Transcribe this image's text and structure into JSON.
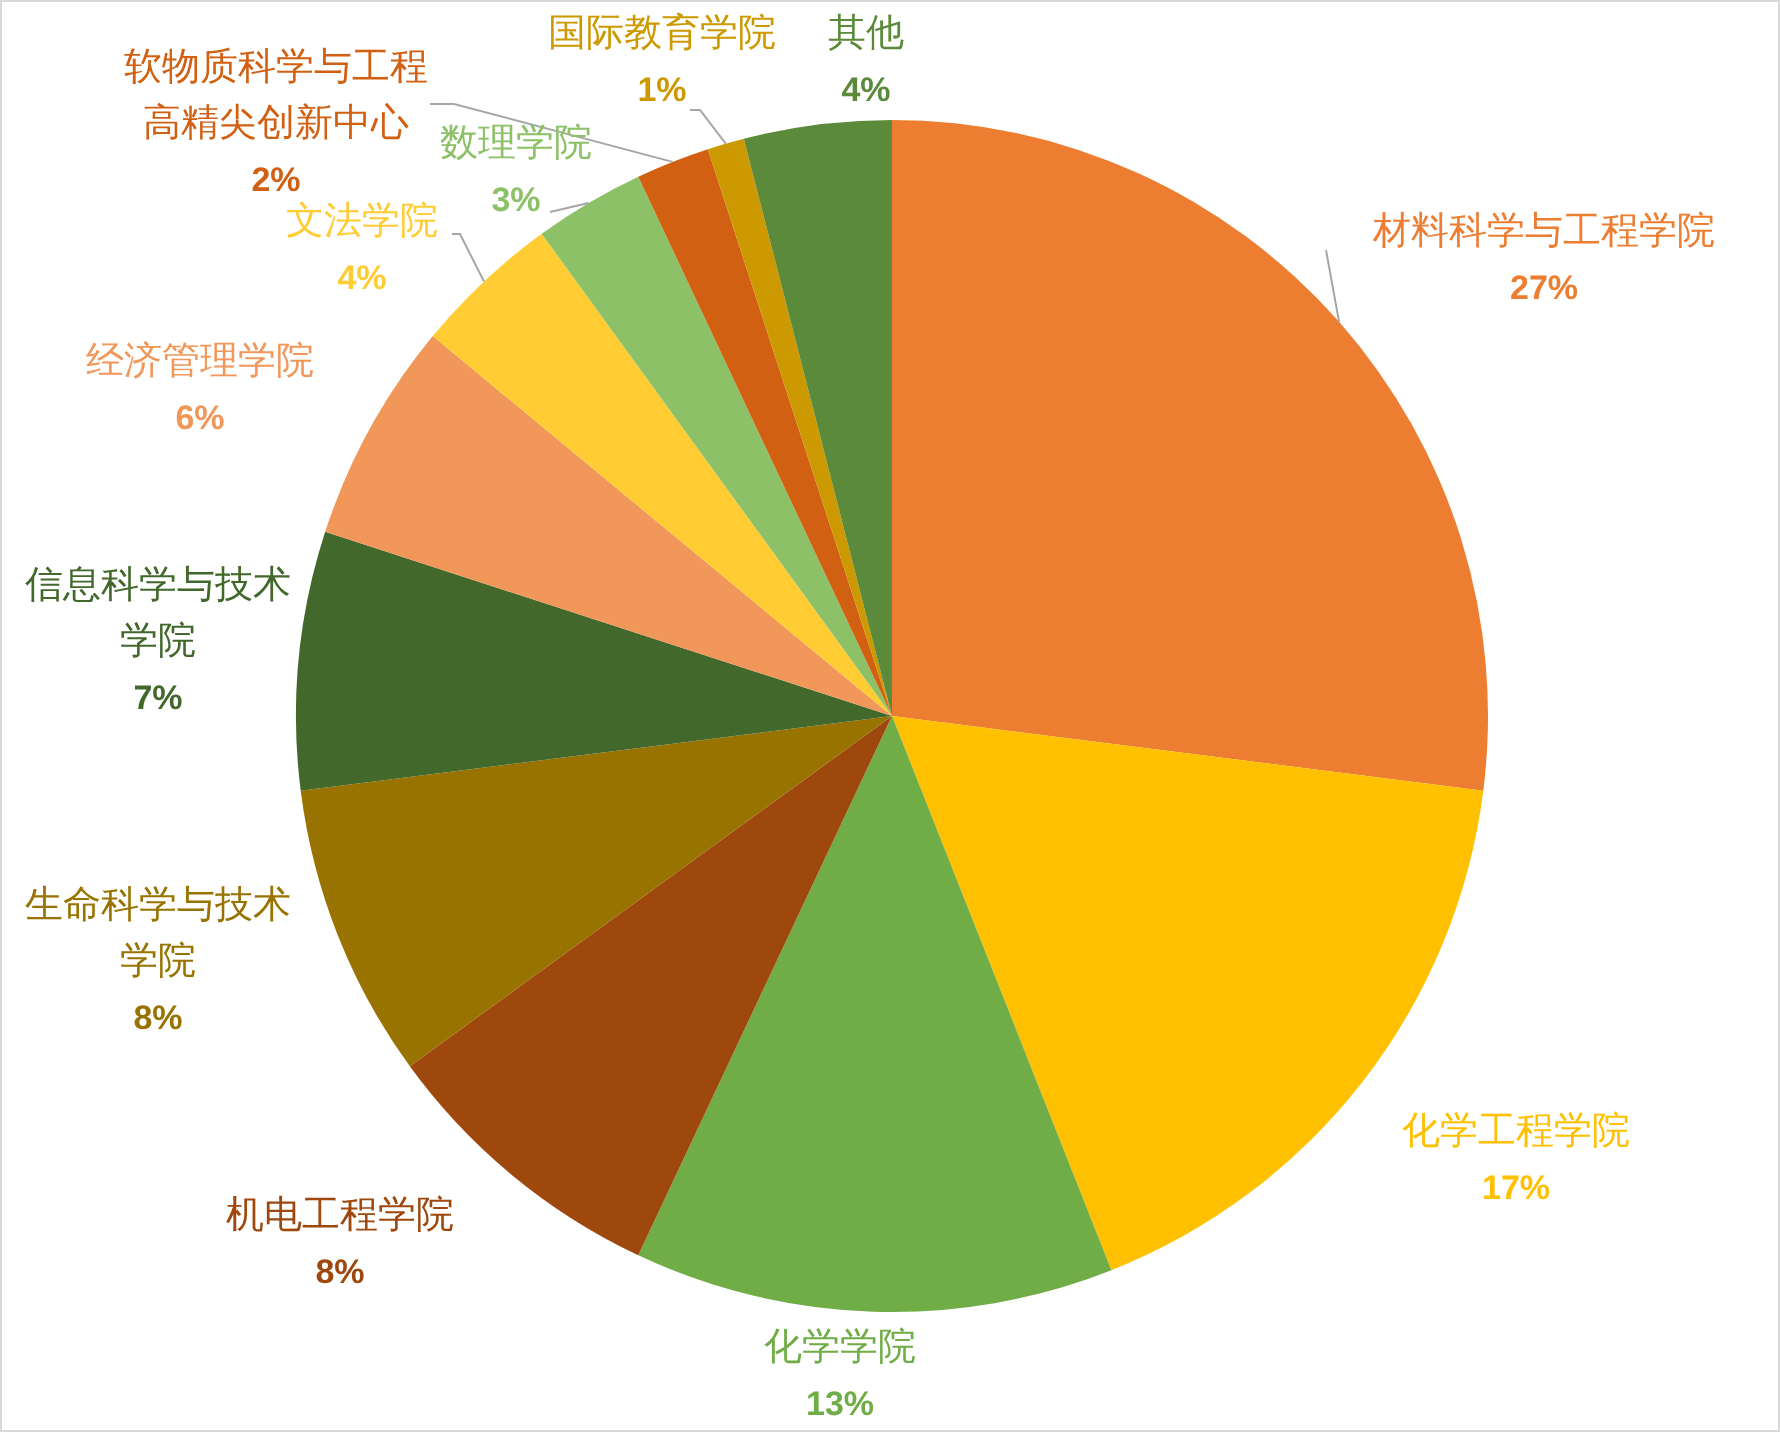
{
  "chart_data": {
    "type": "pie",
    "categories": [
      "材料科学与工程学院",
      "化学工程学院",
      "化学学院",
      "机电工程学院",
      "生命科学与技术学院",
      "信息科学与技术学院",
      "经济管理学院",
      "文法学院",
      "数理学院",
      "软物质科学与工程高精尖创新中心",
      "国际教育学院",
      "其他"
    ],
    "values": [
      27,
      17,
      13,
      8,
      8,
      7,
      6,
      4,
      3,
      2,
      1,
      4
    ],
    "colors": [
      "#ed7d31",
      "#ffc000",
      "#70ad47",
      "#9e480e",
      "#997300",
      "#43682b",
      "#f1975a",
      "#ffcd33",
      "#8cc168",
      "#d26012",
      "#cc9a00",
      "#5a8a3a"
    ],
    "value_labels": [
      "27%",
      "17%",
      "13%",
      "8%",
      "8%",
      "7%",
      "6%",
      "4%",
      "3%",
      "2%",
      "1%",
      "4%"
    ]
  }
}
